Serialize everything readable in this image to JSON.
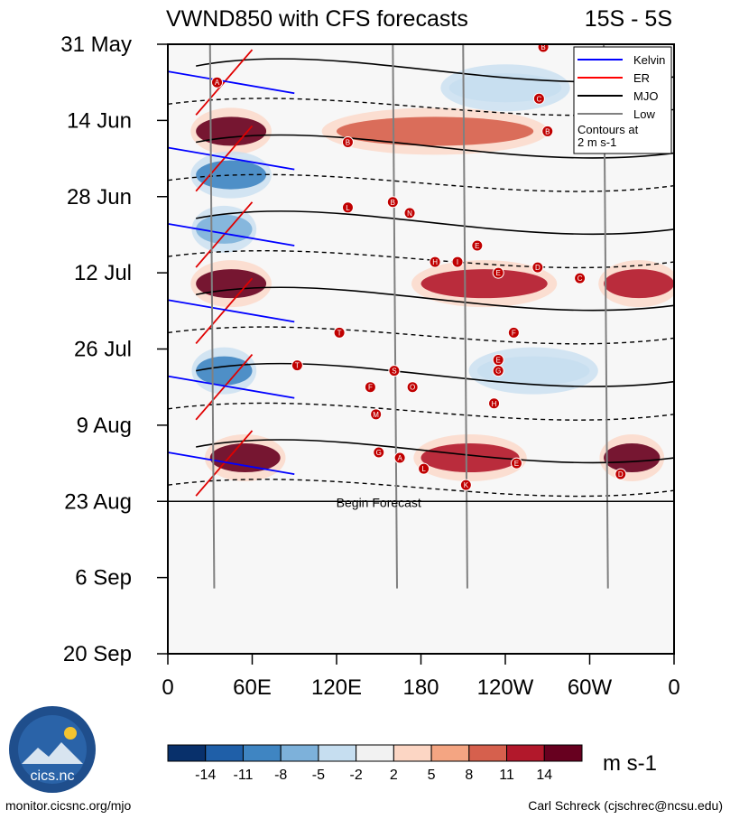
{
  "chart_data": {
    "type": "heatmap",
    "title": "VWND850 with CFS forecasts",
    "region": "15S - 5S",
    "x_ticks": [
      "0",
      "60E",
      "120E",
      "180",
      "120W",
      "60W",
      "0"
    ],
    "y_ticks": [
      "31 May",
      "14 Jun",
      "28 Jun",
      "12 Jul",
      "26 Jul",
      "9 Aug",
      "23 Aug",
      "6 Sep",
      "20 Sep"
    ],
    "x_range_deg": [
      0,
      360
    ],
    "y_range_days": [
      0,
      112
    ],
    "forecast_start_day": 84,
    "forecast_label": "Begin Forecast",
    "colorbar": {
      "labels": [
        "-14",
        "-11",
        "-8",
        "-5",
        "-2",
        "2",
        "5",
        "8",
        "11",
        "14"
      ],
      "colors": [
        "#08306b",
        "#1f5fa8",
        "#3f85c2",
        "#7db1da",
        "#c6def0",
        "#f2f2f2",
        "#fcd6c4",
        "#f4a582",
        "#d6604d",
        "#b2182b",
        "#67001f"
      ],
      "units": "m s-1"
    },
    "legend": {
      "position": "top-right",
      "entries": [
        {
          "label": "Kelvin",
          "color": "#0000ff"
        },
        {
          "label": "ER",
          "color": "#ff0000"
        },
        {
          "label": "MJO",
          "color": "#000000"
        },
        {
          "label": "Low",
          "color": "#808080"
        }
      ],
      "note_line1": "Contours at",
      "note_line2": "2 m s-1"
    },
    "anomaly_bands": [
      {
        "day": 16,
        "lon_start": 20,
        "lon_end": 70,
        "value": 14
      },
      {
        "day": 16,
        "lon_start": 120,
        "lon_end": 260,
        "value": 8
      },
      {
        "day": 24,
        "lon_start": 20,
        "lon_end": 70,
        "value": -11
      },
      {
        "day": 34,
        "lon_start": 20,
        "lon_end": 60,
        "value": -8
      },
      {
        "day": 44,
        "lon_start": 20,
        "lon_end": 70,
        "value": 14
      },
      {
        "day": 44,
        "lon_start": 180,
        "lon_end": 270,
        "value": 11
      },
      {
        "day": 44,
        "lon_start": 310,
        "lon_end": 360,
        "value": 11
      },
      {
        "day": 60,
        "lon_start": 20,
        "lon_end": 60,
        "value": -11
      },
      {
        "day": 60,
        "lon_start": 220,
        "lon_end": 300,
        "value": -5
      },
      {
        "day": 76,
        "lon_start": 30,
        "lon_end": 80,
        "value": 14
      },
      {
        "day": 76,
        "lon_start": 180,
        "lon_end": 250,
        "value": 11
      },
      {
        "day": 76,
        "lon_start": 310,
        "lon_end": 350,
        "value": 14
      },
      {
        "day": 8,
        "lon_start": 200,
        "lon_end": 280,
        "value": -5
      }
    ],
    "storm_markers": [
      {
        "label": "A",
        "lon": 35,
        "day": 7
      },
      {
        "label": "B",
        "lon": 128,
        "day": 18
      },
      {
        "label": "B",
        "lon": 267,
        "day": 0.5
      },
      {
        "label": "C",
        "lon": 264,
        "day": 10
      },
      {
        "label": "B",
        "lon": 270,
        "day": 16
      },
      {
        "label": "L",
        "lon": 128,
        "day": 30
      },
      {
        "label": "B",
        "lon": 160,
        "day": 29
      },
      {
        "label": "N",
        "lon": 172,
        "day": 31
      },
      {
        "label": "H",
        "lon": 190,
        "day": 40
      },
      {
        "label": "I",
        "lon": 206,
        "day": 40
      },
      {
        "label": "E",
        "lon": 220,
        "day": 37
      },
      {
        "label": "D",
        "lon": 263,
        "day": 41
      },
      {
        "label": "E",
        "lon": 235,
        "day": 42
      },
      {
        "label": "C",
        "lon": 293,
        "day": 43
      },
      {
        "label": "T",
        "lon": 122,
        "day": 53
      },
      {
        "label": "F",
        "lon": 246,
        "day": 53
      },
      {
        "label": "T",
        "lon": 92,
        "day": 59
      },
      {
        "label": "E",
        "lon": 235,
        "day": 58
      },
      {
        "label": "G",
        "lon": 235,
        "day": 60
      },
      {
        "label": "S",
        "lon": 161,
        "day": 60
      },
      {
        "label": "F",
        "lon": 144,
        "day": 63
      },
      {
        "label": "O",
        "lon": 174,
        "day": 63
      },
      {
        "label": "H",
        "lon": 232,
        "day": 66
      },
      {
        "label": "M",
        "lon": 148,
        "day": 68
      },
      {
        "label": "G",
        "lon": 150,
        "day": 75
      },
      {
        "label": "A",
        "lon": 165,
        "day": 76
      },
      {
        "label": "E",
        "lon": 248,
        "day": 77
      },
      {
        "label": "L",
        "lon": 182,
        "day": 78
      },
      {
        "label": "K",
        "lon": 212,
        "day": 81
      },
      {
        "label": "D",
        "lon": 322,
        "day": 79
      }
    ]
  },
  "credits": {
    "site": "monitor.cicsnc.org/mjo",
    "author": "Carl Schreck (cjschrec@ncsu.edu)",
    "logo_text": "cics.nc"
  }
}
